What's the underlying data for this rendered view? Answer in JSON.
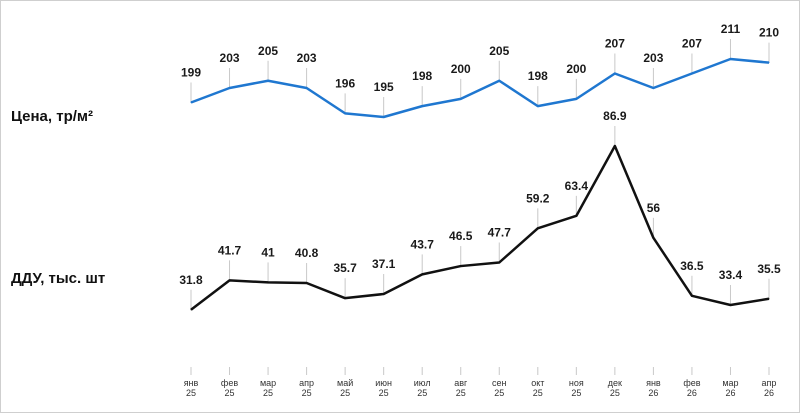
{
  "chart_data": {
    "type": "line",
    "x": [
      "янв 25",
      "фев 25",
      "мар 25",
      "апр 25",
      "май 25",
      "июн 25",
      "июл 25",
      "авг 25",
      "сен 25",
      "окт 25",
      "ноя 25",
      "дек 25",
      "янв 26",
      "фев 26",
      "мар 26",
      "апр 26"
    ],
    "x_ticks": [
      {
        "m": "янв",
        "y": "25"
      },
      {
        "m": "фев",
        "y": "25"
      },
      {
        "m": "мар",
        "y": "25"
      },
      {
        "m": "апр",
        "y": "25"
      },
      {
        "m": "май",
        "y": "25"
      },
      {
        "m": "июн",
        "y": "25"
      },
      {
        "m": "июл",
        "y": "25"
      },
      {
        "m": "авг",
        "y": "25"
      },
      {
        "m": "сен",
        "y": "25"
      },
      {
        "m": "окт",
        "y": "25"
      },
      {
        "m": "ноя",
        "y": "25"
      },
      {
        "m": "дек",
        "y": "25"
      },
      {
        "m": "янв",
        "y": "26"
      },
      {
        "m": "фев",
        "y": "26"
      },
      {
        "m": "мар",
        "y": "26"
      },
      {
        "m": "апр",
        "y": "26"
      }
    ],
    "series": [
      {
        "name": "Цена, тр/м²",
        "color": "#1f77d0",
        "values": [
          199,
          203,
          205,
          203,
          196,
          195,
          198,
          200,
          205,
          198,
          200,
          207,
          203,
          207,
          211,
          210
        ],
        "labels": [
          "199",
          "203",
          "205",
          "203",
          "196",
          "195",
          "198",
          "200",
          "205",
          "198",
          "200",
          "207",
          "203",
          "207",
          "211",
          "210"
        ]
      },
      {
        "name": "ДДУ, тыс. шт",
        "color": "#111111",
        "values": [
          31.8,
          41.7,
          41,
          40.8,
          35.7,
          37.1,
          43.7,
          46.5,
          47.7,
          59.2,
          63.4,
          86.9,
          56,
          36.5,
          33.4,
          35.5
        ],
        "labels": [
          "31.8",
          "41.7",
          "41",
          "40.8",
          "35.7",
          "37.1",
          "43.7",
          "46.5",
          "47.7",
          "59.2",
          "63.4",
          "86.9",
          "56",
          "36.5",
          "33.4",
          "35.5"
        ]
      }
    ],
    "grid": false,
    "legend": "left"
  }
}
